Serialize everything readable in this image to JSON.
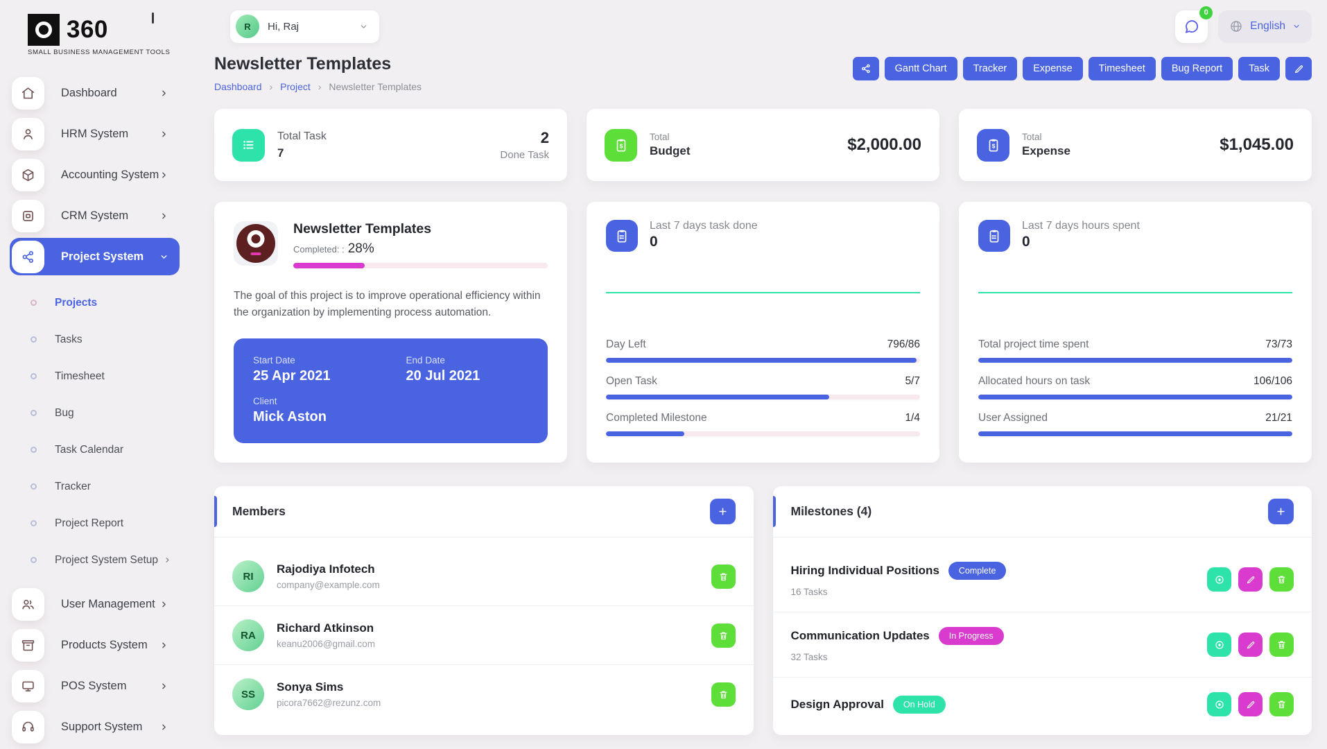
{
  "app": {
    "logo_text": "360",
    "logo_tagline": "SMALL BUSINESS MANAGEMENT TOOLS"
  },
  "header": {
    "greeting": "Hi, Raj",
    "avatar_initials": "R",
    "notification_count": "0",
    "language": "English"
  },
  "sidebar": {
    "items": [
      {
        "label": "Dashboard"
      },
      {
        "label": "HRM System"
      },
      {
        "label": "Accounting System"
      },
      {
        "label": "CRM System"
      },
      {
        "label": "Project System"
      },
      {
        "label": "User Management"
      },
      {
        "label": "Products System"
      },
      {
        "label": "POS System"
      },
      {
        "label": "Support System"
      }
    ],
    "project_submenu": [
      "Projects",
      "Tasks",
      "Timesheet",
      "Bug",
      "Task Calendar",
      "Tracker",
      "Project Report",
      "Project System Setup"
    ]
  },
  "page": {
    "title": "Newsletter Templates",
    "breadcrumb": [
      "Dashboard",
      "Project",
      "Newsletter Templates"
    ],
    "actions": [
      "Gantt Chart",
      "Tracker",
      "Expense",
      "Timesheet",
      "Bug Report",
      "Task"
    ]
  },
  "stats": {
    "total_task": {
      "label": "Total Task",
      "value": "7",
      "done_value": "2",
      "done_label": "Done Task"
    },
    "budget": {
      "label_top": "Total",
      "label": "Budget",
      "value": "$2,000.00"
    },
    "expense": {
      "label_top": "Total",
      "label": "Expense",
      "value": "$1,045.00"
    }
  },
  "project": {
    "name": "Newsletter Templates",
    "completed_label": "Completed: :",
    "completed_pct": "28%",
    "progress": 28,
    "description": "The goal of this project is to improve operational efficiency within the organization by implementing process automation.",
    "start_date_label": "Start Date",
    "start_date": "25 Apr 2021",
    "end_date_label": "End Date",
    "end_date": "20 Jul 2021",
    "client_label": "Client",
    "client": "Mick Aston"
  },
  "task_summary": {
    "title": "Last 7 days task done",
    "value": "0",
    "rows": [
      {
        "label": "Day Left",
        "value": "796/86",
        "pct": 99
      },
      {
        "label": "Open Task",
        "value": "5/7",
        "pct": 71
      },
      {
        "label": "Completed Milestone",
        "value": "1/4",
        "pct": 25
      }
    ]
  },
  "hours_summary": {
    "title": "Last 7 days hours spent",
    "value": "0",
    "rows": [
      {
        "label": "Total project time spent",
        "value": "73/73",
        "pct": 100
      },
      {
        "label": "Allocated hours on task",
        "value": "106/106",
        "pct": 100
      },
      {
        "label": "User Assigned",
        "value": "21/21",
        "pct": 100
      }
    ]
  },
  "members": {
    "title": "Members",
    "list": [
      {
        "name": "Rajodiya Infotech",
        "email": "company@example.com",
        "initials": "RI"
      },
      {
        "name": "Richard Atkinson",
        "email": "keanu2006@gmail.com",
        "initials": "RA"
      },
      {
        "name": "Sonya Sims",
        "email": "picora7662@rezunz.com",
        "initials": "SS"
      }
    ]
  },
  "milestones": {
    "title": "Milestones (4)",
    "list": [
      {
        "name": "Hiring Individual Positions",
        "status": "Complete",
        "status_color": "#4a63e0",
        "tasks": "16 Tasks"
      },
      {
        "name": "Communication Updates",
        "status": "In Progress",
        "status_color": "#d93bce",
        "tasks": "32 Tasks"
      },
      {
        "name": "Design Approval",
        "status": "On Hold",
        "status_color": "#2ee3a9",
        "tasks": ""
      }
    ]
  },
  "colors": {
    "primary": "#4a63e0",
    "teal": "#2ee3a9",
    "green": "#5ede38",
    "magenta": "#d93bce",
    "pink": "#e23bb0",
    "track": "#f7e9ed",
    "maroon": "#5c2020",
    "page-bg": "#f2eff2",
    "sidebar-icon": "#6e4f51"
  }
}
